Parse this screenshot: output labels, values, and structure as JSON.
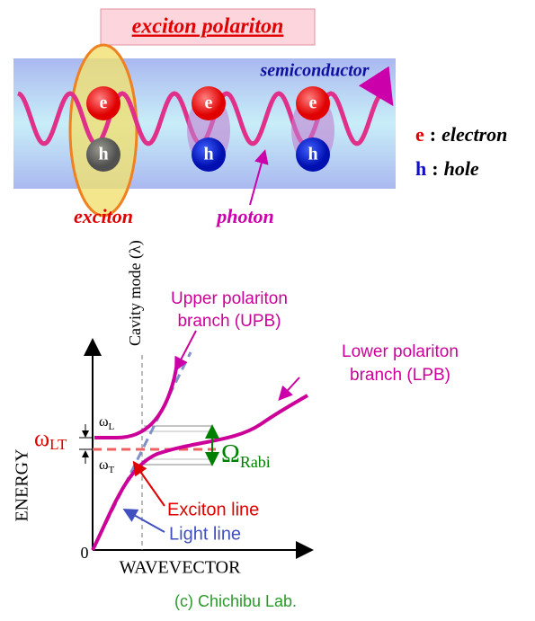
{
  "header": {
    "title": "exciton polariton"
  },
  "illustration": {
    "medium": "semiconductor",
    "particles": [
      {
        "e": "e",
        "h": "h"
      },
      {
        "e": "e",
        "h": "h"
      },
      {
        "e": "e",
        "h": "h"
      }
    ],
    "legend": [
      {
        "symbol": "e",
        "separator": ":",
        "label": "electron"
      },
      {
        "symbol": "h",
        "separator": ":",
        "label": "hole"
      }
    ],
    "exciton_label": "exciton",
    "photon_label": "photon"
  },
  "graph": {
    "cavity_mode": "Cavity mode (λ)",
    "upb": [
      "Upper polariton",
      "branch (UPB)"
    ],
    "lpb": [
      "Lower polariton",
      "branch (LPB)"
    ],
    "y_axis": "ENERGY",
    "x_axis": "WAVEVECTOR",
    "origin": "0",
    "omega_l": {
      "symbol": "ω",
      "sub": "L"
    },
    "omega_t": {
      "symbol": "ω",
      "sub": "T"
    },
    "omega_lt": {
      "symbol": "ω",
      "sub": "LT"
    },
    "rabi": {
      "symbol": "Ω",
      "sub": "Rabi"
    },
    "exciton_line": "Exciton line",
    "light_line": "Light line"
  },
  "footer": {
    "credit": "(c) Chichibu Lab."
  }
}
